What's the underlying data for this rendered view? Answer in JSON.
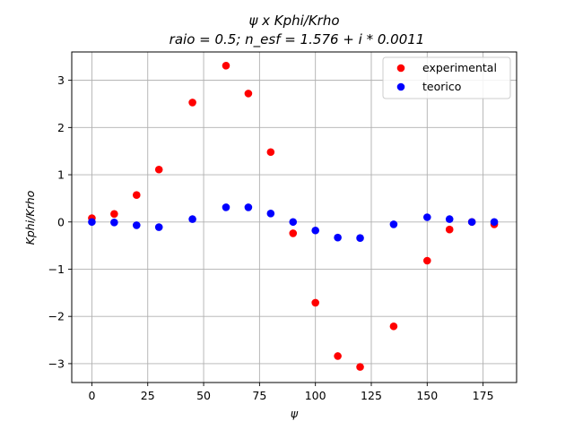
{
  "chart_data": {
    "type": "scatter",
    "title_line1": "ψ x Kphi/Krho",
    "title_line2": "raio = 0.5; n_esf = 1.576 + i * 0.0011",
    "xlabel": "ψ",
    "ylabel": "Kphi/Krho",
    "xlim": [
      -9,
      190
    ],
    "ylim": [
      -3.4,
      3.6
    ],
    "xticks": [
      0,
      25,
      50,
      75,
      100,
      125,
      150,
      175
    ],
    "yticks": [
      -3,
      -2,
      -1,
      0,
      1,
      2,
      3
    ],
    "grid": true,
    "legend_position": "top-right",
    "series": [
      {
        "name": "experimental",
        "color": "#ff0000",
        "x": [
          0,
          10,
          20,
          30,
          45,
          60,
          70,
          80,
          90,
          100,
          110,
          120,
          135,
          150,
          160,
          170,
          180
        ],
        "y": [
          0.08,
          0.17,
          0.57,
          1.11,
          2.53,
          3.31,
          2.72,
          1.48,
          -0.24,
          -1.71,
          -2.84,
          -3.07,
          -2.21,
          -0.82,
          -0.16,
          0.0,
          -0.05
        ]
      },
      {
        "name": "teorico",
        "color": "#0000ff",
        "x": [
          0,
          10,
          20,
          30,
          45,
          60,
          70,
          80,
          90,
          100,
          110,
          120,
          135,
          150,
          160,
          170,
          180
        ],
        "y": [
          0.0,
          -0.01,
          -0.07,
          -0.11,
          0.06,
          0.31,
          0.31,
          0.18,
          0.0,
          -0.18,
          -0.33,
          -0.34,
          -0.05,
          0.1,
          0.06,
          0.0,
          0.0
        ]
      }
    ]
  }
}
